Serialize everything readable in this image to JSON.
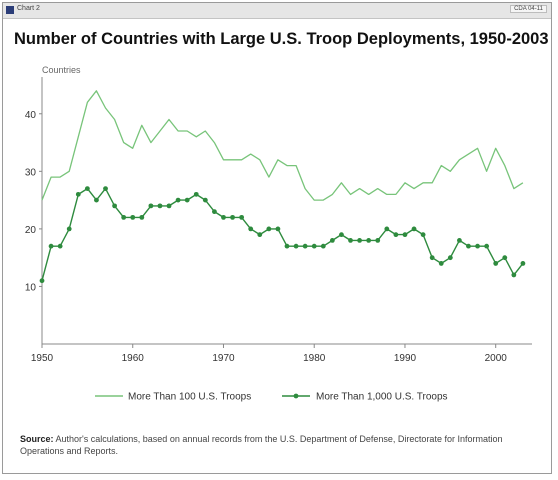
{
  "header": {
    "tab_label": "Chart 2",
    "code": "CDA 04-11"
  },
  "chart_data": {
    "type": "line",
    "title": "Number of Countries with Large U.S. Troop Deployments, 1950-2003",
    "ylabel": "Countries",
    "xlabel": "",
    "xlim": [
      1950,
      2004
    ],
    "ylim": [
      0,
      45
    ],
    "x_ticks": [
      1950,
      1960,
      1970,
      1980,
      1990,
      2000
    ],
    "y_ticks": [
      10,
      20,
      30,
      40
    ],
    "grid": false,
    "legend_position": "bottom",
    "x": [
      1950,
      1951,
      1952,
      1953,
      1954,
      1955,
      1956,
      1957,
      1958,
      1959,
      1960,
      1961,
      1962,
      1963,
      1964,
      1965,
      1966,
      1967,
      1968,
      1969,
      1970,
      1971,
      1972,
      1973,
      1974,
      1975,
      1976,
      1977,
      1978,
      1979,
      1980,
      1981,
      1982,
      1983,
      1984,
      1985,
      1986,
      1987,
      1988,
      1989,
      1990,
      1991,
      1992,
      1993,
      1994,
      1995,
      1996,
      1997,
      1998,
      1999,
      2000,
      2001,
      2002,
      2003
    ],
    "series": [
      {
        "name": "More Than 100 U.S. Troops",
        "color": "#78c47a",
        "marker": "none",
        "values": [
          25,
          29,
          29,
          30,
          36,
          42,
          44,
          41,
          39,
          35,
          34,
          38,
          35,
          37,
          39,
          37,
          37,
          36,
          37,
          35,
          32,
          32,
          32,
          33,
          32,
          29,
          32,
          31,
          31,
          27,
          25,
          25,
          26,
          28,
          26,
          27,
          26,
          27,
          26,
          26,
          28,
          27,
          28,
          28,
          31,
          30,
          32,
          33,
          34,
          30,
          34,
          31,
          27,
          28
        ]
      },
      {
        "name": "More Than 1,000 U.S. Troops",
        "color": "#2e8b3e",
        "marker": "circle",
        "values": [
          11,
          17,
          17,
          20,
          26,
          27,
          25,
          27,
          24,
          22,
          22,
          22,
          24,
          24,
          24,
          25,
          25,
          26,
          25,
          23,
          22,
          22,
          22,
          20,
          19,
          20,
          20,
          17,
          17,
          17,
          17,
          17,
          18,
          19,
          18,
          18,
          18,
          18,
          20,
          19,
          19,
          20,
          19,
          15,
          14,
          15,
          18,
          17,
          17,
          17,
          14,
          15,
          12,
          14
        ]
      }
    ]
  },
  "source": {
    "label": "Source:",
    "text": "Author's calculations, based on annual records from the U.S. Department of Defense, Directorate for Information Operations and Reports."
  }
}
